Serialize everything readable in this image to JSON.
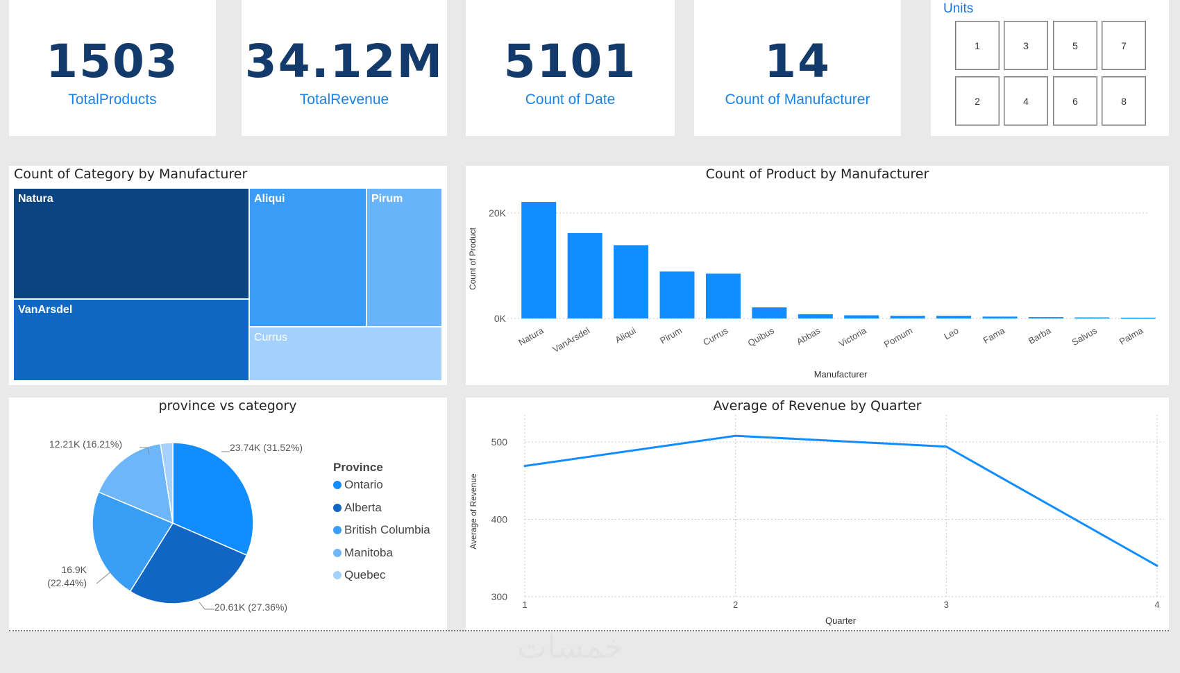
{
  "kpis": [
    {
      "value": "1503",
      "label": "TotalProducts"
    },
    {
      "value": "34.12M",
      "label": "TotalRevenue"
    },
    {
      "value": "5101",
      "label": "Count of Date"
    },
    {
      "value": "14",
      "label": "Count of Manufacturer"
    }
  ],
  "units": {
    "title": "Units",
    "values": [
      "1",
      "3",
      "5",
      "7",
      "2",
      "4",
      "6",
      "8"
    ]
  },
  "treemap": {
    "title": "Count of Category by Manufacturer",
    "tiles": [
      {
        "label": "Natura",
        "color": "#0b4480",
        "text": "#ffffff"
      },
      {
        "label": "VanArsdel",
        "color": "#1068c3",
        "text": "#ffffff"
      },
      {
        "label": "Aliqui",
        "color": "#3a9cf6",
        "text": "#ffffff"
      },
      {
        "label": "Pirum",
        "color": "#6ab4fb",
        "text": "#ffffff"
      },
      {
        "label": "Currus",
        "color": "#a3d0fd",
        "text": "#ffffff"
      }
    ]
  },
  "chart_data": [
    {
      "type": "bar",
      "title": "Count of Product by Manufacturer",
      "xlabel": "Manufacturer",
      "ylabel": "Count of Product",
      "categories": [
        "Natura",
        "VanArsdel",
        "Aliqui",
        "Pirum",
        "Currus",
        "Quibus",
        "Abbas",
        "Victoria",
        "Pomum",
        "Leo",
        "Fama",
        "Barba",
        "Salvus",
        "Palma"
      ],
      "values": [
        22100,
        16200,
        13900,
        8900,
        8500,
        2100,
        800,
        600,
        500,
        500,
        350,
        250,
        200,
        150
      ],
      "ylim": [
        0,
        25000
      ],
      "yticks": [
        {
          "v": 0,
          "label": "0K"
        },
        {
          "v": 20000,
          "label": "20K"
        }
      ],
      "color": "#118dff"
    },
    {
      "type": "pie",
      "title": "province vs category",
      "legend_title": "Province",
      "series": [
        {
          "name": "Ontario",
          "value": 23.74,
          "label": "23.74K (31.52%)",
          "color": "#118dff"
        },
        {
          "name": "Alberta",
          "value": 20.61,
          "label": "20.61K (27.36%)",
          "color": "#1066c2"
        },
        {
          "name": "British Columbia",
          "value": 16.9,
          "label": "16.9K (22.44%)",
          "color": "#3b9ef5"
        },
        {
          "name": "Manitoba",
          "value": 12.21,
          "label": "12.21K (16.21%)",
          "color": "#6db6fa"
        },
        {
          "name": "Quebec",
          "value": 1.86,
          "label": "",
          "color": "#a6d1fd"
        }
      ]
    },
    {
      "type": "line",
      "title": "Average of Revenue by Quarter",
      "xlabel": "Quarter",
      "ylabel": "Average of Revenue",
      "x": [
        1,
        2,
        3,
        4
      ],
      "values": [
        469,
        508,
        494,
        340
      ],
      "ylim": [
        300,
        535
      ],
      "yticks": [
        300,
        400,
        500
      ],
      "color": "#118dff"
    }
  ],
  "watermark": "خمسات"
}
